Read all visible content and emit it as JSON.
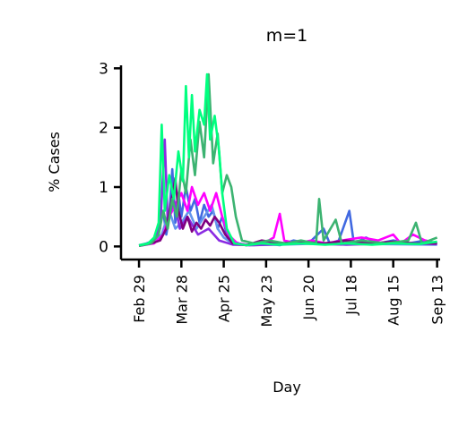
{
  "chart_data": {
    "type": "line",
    "title": "m=1",
    "xlabel": "Day",
    "ylabel": "% Cases",
    "x_ticks": [
      "Feb 29",
      "Mar 28",
      "Apr 25",
      "May 23",
      "Jun 20",
      "Jul 18",
      "Aug 15",
      "Sep 13"
    ],
    "y_ticks": [
      "0",
      "1",
      "2",
      "3"
    ],
    "xlim": [
      "2020-02-26",
      "2020-09-15"
    ],
    "ylim": [
      -0.1,
      3.05
    ],
    "grid": false,
    "legend": "none",
    "series": [
      {
        "color": "#4169e1",
        "points": [
          [
            "2020-02-29",
            0.02
          ],
          [
            "2020-03-05",
            0.05
          ],
          [
            "2020-03-10",
            0.1
          ],
          [
            "2020-03-13",
            0.3
          ],
          [
            "2020-03-16",
            0.6
          ],
          [
            "2020-03-18",
            0.2
          ],
          [
            "2020-03-20",
            0.5
          ],
          [
            "2020-03-22",
            1.3
          ],
          [
            "2020-03-24",
            0.4
          ],
          [
            "2020-03-26",
            0.9
          ],
          [
            "2020-03-28",
            0.5
          ],
          [
            "2020-03-31",
            1.0
          ],
          [
            "2020-04-03",
            0.6
          ],
          [
            "2020-04-06",
            0.8
          ],
          [
            "2020-04-09",
            0.4
          ],
          [
            "2020-04-12",
            0.7
          ],
          [
            "2020-04-15",
            0.5
          ],
          [
            "2020-04-18",
            0.6
          ],
          [
            "2020-04-21",
            0.3
          ],
          [
            "2020-04-24",
            0.5
          ],
          [
            "2020-04-27",
            0.2
          ],
          [
            "2020-04-30",
            0.1
          ],
          [
            "2020-05-05",
            0.05
          ],
          [
            "2020-05-12",
            0.02
          ],
          [
            "2020-05-20",
            0.05
          ],
          [
            "2020-06-01",
            0.02
          ],
          [
            "2020-06-10",
            0.1
          ],
          [
            "2020-06-20",
            0.05
          ],
          [
            "2020-06-30",
            0.3
          ],
          [
            "2020-07-04",
            0.05
          ],
          [
            "2020-07-10",
            0.1
          ],
          [
            "2020-07-17",
            0.6
          ],
          [
            "2020-07-20",
            0.05
          ],
          [
            "2020-07-28",
            0.15
          ],
          [
            "2020-08-05",
            0.05
          ],
          [
            "2020-08-15",
            0.1
          ],
          [
            "2020-08-25",
            0.05
          ],
          [
            "2020-09-05",
            0.1
          ],
          [
            "2020-09-13",
            0.05
          ]
        ]
      },
      {
        "color": "#6495ed",
        "points": [
          [
            "2020-02-29",
            0.01
          ],
          [
            "2020-03-08",
            0.05
          ],
          [
            "2020-03-15",
            0.2
          ],
          [
            "2020-03-20",
            0.6
          ],
          [
            "2020-03-24",
            0.3
          ],
          [
            "2020-03-28",
            0.4
          ],
          [
            "2020-04-02",
            0.6
          ],
          [
            "2020-04-07",
            0.3
          ],
          [
            "2020-04-12",
            0.5
          ],
          [
            "2020-04-17",
            0.7
          ],
          [
            "2020-04-21",
            0.3
          ],
          [
            "2020-04-25",
            0.15
          ],
          [
            "2020-05-01",
            0.05
          ],
          [
            "2020-05-10",
            0.02
          ],
          [
            "2020-06-01",
            0.03
          ],
          [
            "2020-07-01",
            0.05
          ],
          [
            "2020-08-01",
            0.04
          ],
          [
            "2020-09-13",
            0.03
          ]
        ]
      },
      {
        "color": "#ff00ff",
        "points": [
          [
            "2020-02-29",
            0.01
          ],
          [
            "2020-03-10",
            0.05
          ],
          [
            "2020-03-16",
            0.2
          ],
          [
            "2020-03-20",
            0.5
          ],
          [
            "2020-03-24",
            0.7
          ],
          [
            "2020-03-28",
            0.9
          ],
          [
            "2020-04-01",
            0.6
          ],
          [
            "2020-04-04",
            1.0
          ],
          [
            "2020-04-08",
            0.7
          ],
          [
            "2020-04-12",
            0.9
          ],
          [
            "2020-04-16",
            0.6
          ],
          [
            "2020-04-20",
            0.9
          ],
          [
            "2020-04-24",
            0.5
          ],
          [
            "2020-04-28",
            0.2
          ],
          [
            "2020-05-04",
            0.05
          ],
          [
            "2020-05-12",
            0.02
          ],
          [
            "2020-05-20",
            0.03
          ],
          [
            "2020-05-28",
            0.15
          ],
          [
            "2020-06-01",
            0.55
          ],
          [
            "2020-06-04",
            0.1
          ],
          [
            "2020-06-12",
            0.05
          ],
          [
            "2020-06-22",
            0.1
          ],
          [
            "2020-07-02",
            0.05
          ],
          [
            "2020-07-12",
            0.1
          ],
          [
            "2020-07-25",
            0.15
          ],
          [
            "2020-08-05",
            0.1
          ],
          [
            "2020-08-15",
            0.2
          ],
          [
            "2020-08-20",
            0.05
          ],
          [
            "2020-08-28",
            0.2
          ],
          [
            "2020-09-05",
            0.1
          ],
          [
            "2020-09-13",
            0.05
          ]
        ]
      },
      {
        "color": "#8a2be2",
        "points": [
          [
            "2020-02-29",
            0.01
          ],
          [
            "2020-03-08",
            0.05
          ],
          [
            "2020-03-14",
            0.3
          ],
          [
            "2020-03-17",
            1.8
          ],
          [
            "2020-03-19",
            0.4
          ],
          [
            "2020-03-23",
            0.8
          ],
          [
            "2020-03-27",
            0.3
          ],
          [
            "2020-04-01",
            0.5
          ],
          [
            "2020-04-08",
            0.2
          ],
          [
            "2020-04-15",
            0.3
          ],
          [
            "2020-04-22",
            0.1
          ],
          [
            "2020-05-01",
            0.03
          ],
          [
            "2020-05-15",
            0.02
          ],
          [
            "2020-06-15",
            0.05
          ],
          [
            "2020-07-15",
            0.03
          ],
          [
            "2020-08-15",
            0.05
          ],
          [
            "2020-09-13",
            0.04
          ]
        ]
      },
      {
        "color": "#800080",
        "points": [
          [
            "2020-02-29",
            0.01
          ],
          [
            "2020-03-08",
            0.05
          ],
          [
            "2020-03-14",
            0.1
          ],
          [
            "2020-03-18",
            0.3
          ],
          [
            "2020-03-21",
            0.7
          ],
          [
            "2020-03-24",
            1.15
          ],
          [
            "2020-03-26",
            0.6
          ],
          [
            "2020-03-29",
            0.3
          ],
          [
            "2020-04-01",
            0.5
          ],
          [
            "2020-04-04",
            0.25
          ],
          [
            "2020-04-07",
            0.4
          ],
          [
            "2020-04-10",
            0.3
          ],
          [
            "2020-04-13",
            0.45
          ],
          [
            "2020-04-16",
            0.35
          ],
          [
            "2020-04-19",
            0.5
          ],
          [
            "2020-04-22",
            0.4
          ],
          [
            "2020-04-26",
            0.2
          ],
          [
            "2020-05-01",
            0.05
          ],
          [
            "2020-05-10",
            0.02
          ],
          [
            "2020-05-20",
            0.1
          ],
          [
            "2020-06-01",
            0.05
          ],
          [
            "2020-06-15",
            0.08
          ],
          [
            "2020-06-30",
            0.05
          ],
          [
            "2020-07-15",
            0.1
          ],
          [
            "2020-07-30",
            0.05
          ],
          [
            "2020-08-15",
            0.08
          ],
          [
            "2020-08-30",
            0.05
          ],
          [
            "2020-09-13",
            0.05
          ]
        ]
      },
      {
        "color": "#3cb371",
        "points": [
          [
            "2020-02-29",
            0.01
          ],
          [
            "2020-03-08",
            0.05
          ],
          [
            "2020-03-13",
            0.2
          ],
          [
            "2020-03-16",
            0.6
          ],
          [
            "2020-03-19",
            0.3
          ],
          [
            "2020-03-22",
            0.8
          ],
          [
            "2020-03-25",
            0.5
          ],
          [
            "2020-03-28",
            1.3
          ],
          [
            "2020-03-31",
            0.9
          ],
          [
            "2020-04-03",
            1.8
          ],
          [
            "2020-04-06",
            1.2
          ],
          [
            "2020-04-09",
            2.1
          ],
          [
            "2020-04-12",
            1.5
          ],
          [
            "2020-04-15",
            2.9
          ],
          [
            "2020-04-18",
            1.4
          ],
          [
            "2020-04-21",
            1.9
          ],
          [
            "2020-04-24",
            0.9
          ],
          [
            "2020-04-27",
            1.2
          ],
          [
            "2020-04-30",
            1.0
          ],
          [
            "2020-05-03",
            0.5
          ],
          [
            "2020-05-07",
            0.1
          ],
          [
            "2020-05-15",
            0.05
          ],
          [
            "2020-05-25",
            0.1
          ],
          [
            "2020-06-05",
            0.05
          ],
          [
            "2020-06-15",
            0.1
          ],
          [
            "2020-06-25",
            0.05
          ],
          [
            "2020-06-27",
            0.8
          ],
          [
            "2020-06-30",
            0.1
          ],
          [
            "2020-07-08",
            0.45
          ],
          [
            "2020-07-12",
            0.05
          ],
          [
            "2020-07-25",
            0.1
          ],
          [
            "2020-08-10",
            0.05
          ],
          [
            "2020-08-25",
            0.1
          ],
          [
            "2020-08-30",
            0.4
          ],
          [
            "2020-09-03",
            0.05
          ],
          [
            "2020-09-13",
            0.15
          ]
        ]
      },
      {
        "color": "#00ff7f",
        "points": [
          [
            "2020-02-29",
            0.02
          ],
          [
            "2020-03-06",
            0.05
          ],
          [
            "2020-03-10",
            0.15
          ],
          [
            "2020-03-13",
            0.4
          ],
          [
            "2020-03-15",
            2.05
          ],
          [
            "2020-03-17",
            0.6
          ],
          [
            "2020-03-20",
            1.2
          ],
          [
            "2020-03-23",
            0.8
          ],
          [
            "2020-03-26",
            1.6
          ],
          [
            "2020-03-29",
            1.1
          ],
          [
            "2020-03-31",
            2.7
          ],
          [
            "2020-04-02",
            1.5
          ],
          [
            "2020-04-04",
            2.55
          ],
          [
            "2020-04-06",
            1.6
          ],
          [
            "2020-04-09",
            2.3
          ],
          [
            "2020-04-12",
            2.05
          ],
          [
            "2020-04-14",
            2.9
          ],
          [
            "2020-04-16",
            1.8
          ],
          [
            "2020-04-19",
            2.2
          ],
          [
            "2020-04-22",
            1.6
          ],
          [
            "2020-04-24",
            0.9
          ],
          [
            "2020-04-27",
            0.3
          ],
          [
            "2020-05-02",
            0.05
          ],
          [
            "2020-05-10",
            0.02
          ],
          [
            "2020-05-20",
            0.05
          ],
          [
            "2020-06-01",
            0.03
          ],
          [
            "2020-06-15",
            0.05
          ],
          [
            "2020-07-01",
            0.03
          ],
          [
            "2020-07-15",
            0.05
          ],
          [
            "2020-08-01",
            0.03
          ],
          [
            "2020-08-15",
            0.05
          ],
          [
            "2020-09-01",
            0.04
          ],
          [
            "2020-09-13",
            0.08
          ]
        ]
      }
    ]
  }
}
